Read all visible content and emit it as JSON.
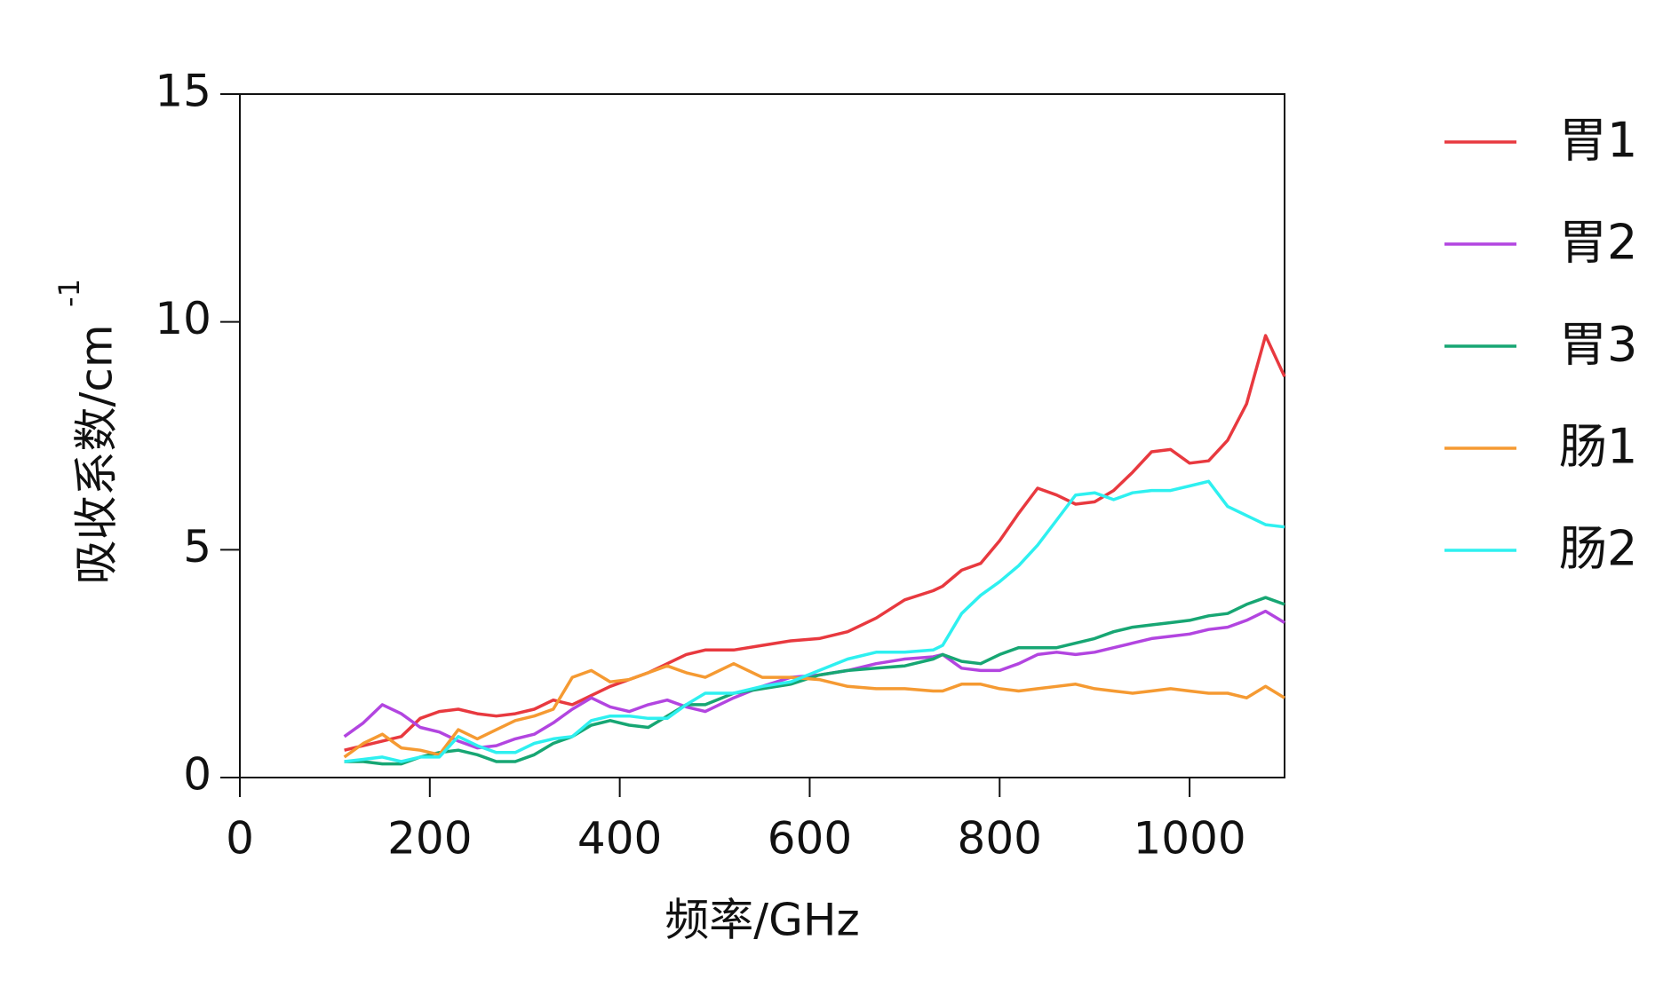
{
  "chart_data": {
    "type": "line",
    "x_label": "频率/GHz",
    "y_label": "吸收系数/cm",
    "y_label_sup": "-1",
    "xlim": [
      0,
      1100
    ],
    "xticks": [
      0,
      200,
      400,
      600,
      800,
      1000
    ],
    "ylim": [
      0,
      15
    ],
    "yticks": [
      0,
      5,
      10,
      15
    ],
    "grid": false,
    "legend": "right",
    "x": [
      110,
      130,
      150,
      170,
      190,
      210,
      230,
      250,
      270,
      290,
      310,
      330,
      350,
      370,
      390,
      410,
      430,
      450,
      470,
      490,
      520,
      550,
      580,
      610,
      640,
      670,
      700,
      730,
      740,
      760,
      780,
      800,
      820,
      840,
      860,
      880,
      900,
      920,
      940,
      960,
      980,
      1000,
      1020,
      1040,
      1060,
      1080,
      1100
    ],
    "series": [
      {
        "name": "胃1",
        "color": "#e8393f",
        "values": [
          0.6,
          0.7,
          0.8,
          0.9,
          1.3,
          1.45,
          1.5,
          1.4,
          1.35,
          1.4,
          1.5,
          1.7,
          1.6,
          1.8,
          2.0,
          2.15,
          2.3,
          2.5,
          2.7,
          2.8,
          2.8,
          2.9,
          3.0,
          3.05,
          3.2,
          3.5,
          3.9,
          4.1,
          4.2,
          4.55,
          4.7,
          5.2,
          5.8,
          6.35,
          6.2,
          6.0,
          6.05,
          6.3,
          6.7,
          7.15,
          7.2,
          6.9,
          6.95,
          7.4,
          8.2,
          9.7,
          8.8
        ]
      },
      {
        "name": "胃2",
        "color": "#b245e0",
        "values": [
          0.9,
          1.2,
          1.6,
          1.4,
          1.1,
          1.0,
          0.8,
          0.65,
          0.7,
          0.85,
          0.95,
          1.2,
          1.5,
          1.75,
          1.55,
          1.45,
          1.6,
          1.7,
          1.55,
          1.45,
          1.75,
          2.0,
          2.2,
          2.25,
          2.35,
          2.5,
          2.6,
          2.65,
          2.7,
          2.4,
          2.35,
          2.35,
          2.5,
          2.7,
          2.75,
          2.7,
          2.75,
          2.85,
          2.95,
          3.05,
          3.1,
          3.15,
          3.25,
          3.3,
          3.45,
          3.65,
          3.4
        ]
      },
      {
        "name": "胃3",
        "color": "#17a673",
        "values": [
          0.35,
          0.35,
          0.3,
          0.3,
          0.45,
          0.55,
          0.6,
          0.5,
          0.35,
          0.35,
          0.5,
          0.75,
          0.9,
          1.15,
          1.25,
          1.15,
          1.1,
          1.35,
          1.6,
          1.6,
          1.85,
          1.95,
          2.05,
          2.25,
          2.35,
          2.4,
          2.45,
          2.6,
          2.7,
          2.55,
          2.5,
          2.7,
          2.85,
          2.85,
          2.85,
          2.95,
          3.05,
          3.2,
          3.3,
          3.35,
          3.4,
          3.45,
          3.55,
          3.6,
          3.8,
          3.95,
          3.8
        ]
      },
      {
        "name": "肠1",
        "color": "#f59a32",
        "values": [
          0.45,
          0.75,
          0.95,
          0.65,
          0.6,
          0.5,
          1.05,
          0.85,
          1.05,
          1.25,
          1.35,
          1.5,
          2.2,
          2.35,
          2.1,
          2.15,
          2.3,
          2.45,
          2.3,
          2.2,
          2.5,
          2.2,
          2.2,
          2.15,
          2.0,
          1.95,
          1.95,
          1.9,
          1.9,
          2.05,
          2.05,
          1.95,
          1.9,
          1.95,
          2.0,
          2.05,
          1.95,
          1.9,
          1.85,
          1.9,
          1.95,
          1.9,
          1.85,
          1.85,
          1.75,
          2.0,
          1.75
        ]
      },
      {
        "name": "肠2",
        "color": "#2ef0f0",
        "values": [
          0.35,
          0.4,
          0.45,
          0.35,
          0.45,
          0.45,
          0.9,
          0.7,
          0.55,
          0.55,
          0.75,
          0.85,
          0.9,
          1.25,
          1.35,
          1.35,
          1.3,
          1.3,
          1.6,
          1.85,
          1.85,
          2.0,
          2.1,
          2.35,
          2.6,
          2.75,
          2.75,
          2.8,
          2.9,
          3.6,
          4.0,
          4.3,
          4.65,
          5.1,
          5.65,
          6.2,
          6.25,
          6.1,
          6.25,
          6.3,
          6.3,
          6.4,
          6.5,
          5.95,
          5.75,
          5.55,
          5.5
        ]
      }
    ]
  }
}
